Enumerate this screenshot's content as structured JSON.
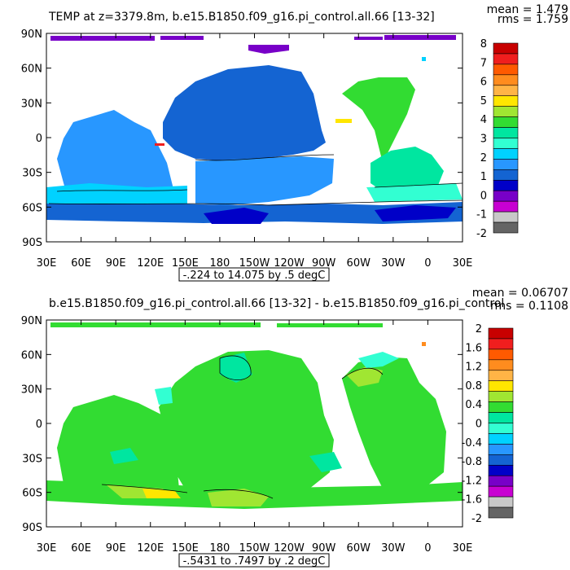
{
  "panels": [
    {
      "title": "TEMP at z=3379.8m, b.e15.B1850.f09_g16.pi_control.all.66 [13-32]",
      "stat_mean": "mean = 1.479",
      "stat_rms": "rms = 1.759",
      "range_label": "-.224 to 14.075 by .5 degC",
      "colorbar_labels": [
        "8",
        "7",
        "6",
        "5",
        "4",
        "3",
        "2",
        "1",
        "0",
        "-1",
        "-2"
      ],
      "colorbar_colors": [
        "#c80000",
        "#f01e1e",
        "#ff5a00",
        "#ff8c1e",
        "#ffb446",
        "#ffe600",
        "#a0e632",
        "#32dc32",
        "#00e6a0",
        "#32ffd2",
        "#00d2ff",
        "#2897ff",
        "#1464d2",
        "#0000c8",
        "#7800c8",
        "#c800d2",
        "#c8c8c8",
        "#646464"
      ]
    },
    {
      "title": "b.e15.B1850.f09_g16.pi_control.all.66 [13-32] - b.e15.B1850.f09_g16.pi_control",
      "stat_mean": "mean = 0.06707",
      "stat_rms": "rms = 0.1108",
      "range_label": "-.5431 to .7497 by .2 degC",
      "colorbar_labels": [
        "2",
        "1.6",
        "1.2",
        "0.8",
        "0.4",
        "0",
        "-0.4",
        "-0.8",
        "-1.2",
        "-1.6",
        "-2"
      ],
      "colorbar_colors": [
        "#c80000",
        "#f01e1e",
        "#ff5a00",
        "#ff8c1e",
        "#ffb446",
        "#ffe600",
        "#a0e632",
        "#32dc32",
        "#00e6a0",
        "#32ffd2",
        "#00d2ff",
        "#2897ff",
        "#1464d2",
        "#0000c8",
        "#7800c8",
        "#c800d2",
        "#c8c8c8",
        "#646464"
      ]
    }
  ],
  "axes": {
    "lat_labels": [
      "90N",
      "60N",
      "30N",
      "0",
      "30S",
      "60S",
      "90S"
    ],
    "lon_labels": [
      "30E",
      "60E",
      "90E",
      "120E",
      "150E",
      "180",
      "150W",
      "120W",
      "90W",
      "60W",
      "30W",
      "0",
      "30E"
    ]
  },
  "chart_data": [
    {
      "type": "heatmap",
      "title": "TEMP at z=3379.8m, b.e15.B1850.f09_g16.pi_control.all.66 [13-32]",
      "x_range": [
        "30E",
        "30E"
      ],
      "y_range": [
        "90S",
        "90N"
      ],
      "colorbar": [
        -2,
        -1,
        0,
        1,
        2,
        3,
        4,
        5,
        6,
        7,
        8
      ],
      "mean": 1.479,
      "rms": 1.759,
      "data_min": -0.224,
      "data_max": 14.075,
      "contour_interval": 0.5,
      "units": "degC"
    },
    {
      "type": "heatmap",
      "title": "b.e15.B1850.f09_g16.pi_control.all.66 [13-32] - b.e15.B1850.f09_g16.pi_control",
      "x_range": [
        "30E",
        "30E"
      ],
      "y_range": [
        "90S",
        "90N"
      ],
      "colorbar": [
        -2,
        -1.6,
        -1.2,
        -0.8,
        -0.4,
        0,
        0.4,
        0.8,
        1.2,
        1.6,
        2
      ],
      "mean": 0.06707,
      "rms": 0.1108,
      "data_min": -0.5431,
      "data_max": 0.7497,
      "contour_interval": 0.2,
      "units": "degC"
    }
  ]
}
